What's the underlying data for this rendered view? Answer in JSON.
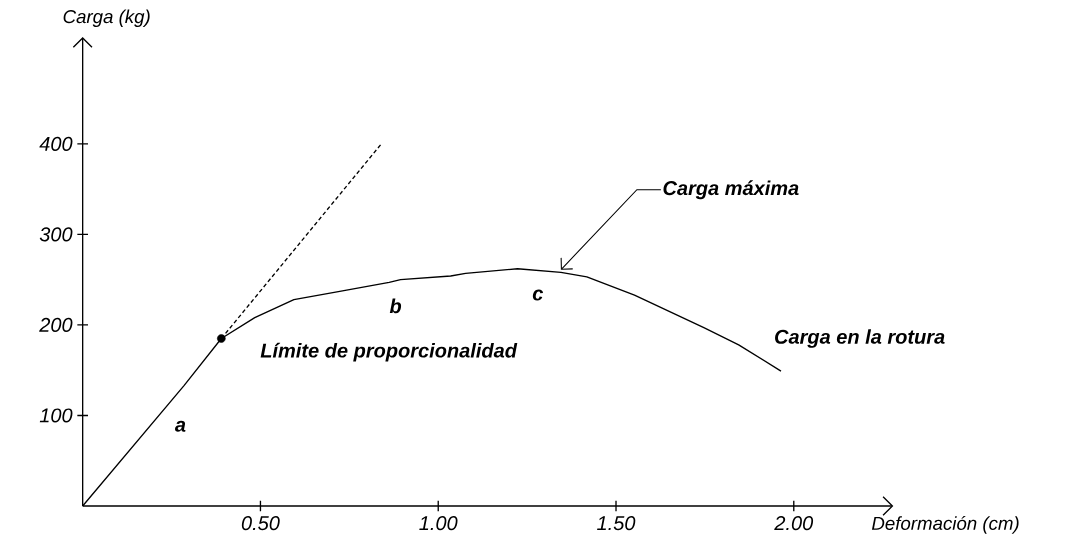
{
  "chart_data": {
    "type": "line",
    "xlabel": "Deformación (cm)",
    "ylabel": "Carga (kg)",
    "xlim": [
      0,
      2.28
    ],
    "ylim": [
      0,
      518
    ],
    "xticks": [
      {
        "value": 0.5,
        "label": "0.50"
      },
      {
        "value": 1.0,
        "label": "1.00"
      },
      {
        "value": 1.5,
        "label": "1.50"
      },
      {
        "value": 2.0,
        "label": "2.00"
      }
    ],
    "yticks": [
      100,
      200,
      300,
      400
    ],
    "grid": false,
    "series": [
      {
        "color": "#000000",
        "line_style": "solid",
        "marker": "none",
        "x": [
          0,
          0.285,
          0.39,
          0.484,
          0.594,
          0.723,
          0.862,
          0.894,
          1.035,
          1.077,
          1.223,
          1.345,
          1.418,
          1.552,
          1.747,
          1.845,
          1.964
        ],
        "values": [
          0,
          133,
          185,
          208,
          228,
          237,
          247,
          250,
          254,
          257,
          262,
          258,
          253,
          233,
          197,
          178,
          149
        ]
      },
      {
        "color": "#000000",
        "line_style": "dashed",
        "marker": "none",
        "x": [
          0.39,
          0.838
        ],
        "values": [
          185,
          399
        ]
      },
      {
        "type": "scatter",
        "color": "#000000",
        "marker": "circle",
        "x": [
          0.39
        ],
        "values": [
          185
        ]
      }
    ],
    "annotations": [
      "a",
      "b",
      "c",
      {
        "text": "Límite de proporcionalidad",
        "x": 0.39,
        "y": 185
      },
      {
        "text": "Carga máxima",
        "x": 1.345,
        "y": 258
      },
      "Carga en la rotura"
    ]
  }
}
